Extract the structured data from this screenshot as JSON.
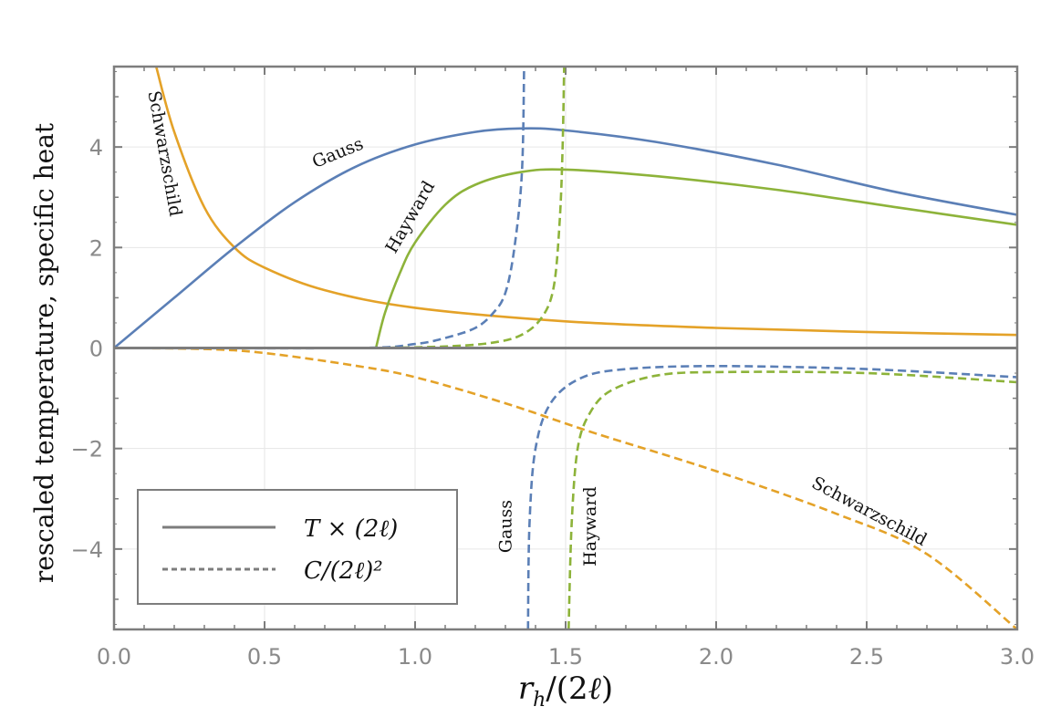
{
  "chart_data": {
    "type": "line",
    "xlabel": "r_h/(2ℓ)",
    "ylabel": "rescaled temperature, specific heat",
    "xlim": [
      0,
      3
    ],
    "ylim": [
      -5.6,
      5.6
    ],
    "xticks": [
      "0.0",
      "0.5",
      "1.0",
      "1.5",
      "2.0",
      "2.5",
      "3.0"
    ],
    "yticks": [
      "4",
      "2",
      "0",
      "−2",
      "−4"
    ],
    "grid": true,
    "legend": {
      "position": "bottom-left",
      "entries": [
        {
          "label": "T × (2ℓ)",
          "style": "solid"
        },
        {
          "label": "C/(2ℓ)²",
          "style": "dashed"
        }
      ]
    },
    "series": [
      {
        "name": "Schwarzschild T",
        "model": "Schwarzschild",
        "kind": "T",
        "color": "#e4a228",
        "style": "solid",
        "points": [
          [
            0.14,
            5.6
          ],
          [
            0.2,
            4.3
          ],
          [
            0.3,
            2.8
          ],
          [
            0.4,
            2.0
          ],
          [
            0.5,
            1.6
          ],
          [
            0.7,
            1.15
          ],
          [
            1.0,
            0.8
          ],
          [
            1.5,
            0.53
          ],
          [
            2.0,
            0.4
          ],
          [
            2.5,
            0.32
          ],
          [
            3.0,
            0.26
          ]
        ]
      },
      {
        "name": "Gauss T",
        "model": "Gauss",
        "kind": "T",
        "color": "#5b7fb6",
        "style": "solid",
        "points": [
          [
            0.0,
            0.0
          ],
          [
            0.2,
            1.0
          ],
          [
            0.4,
            2.0
          ],
          [
            0.6,
            2.9
          ],
          [
            0.8,
            3.6
          ],
          [
            1.0,
            4.05
          ],
          [
            1.2,
            4.3
          ],
          [
            1.35,
            4.37
          ],
          [
            1.5,
            4.33
          ],
          [
            1.8,
            4.1
          ],
          [
            2.2,
            3.65
          ],
          [
            2.6,
            3.1
          ],
          [
            3.0,
            2.65
          ]
        ]
      },
      {
        "name": "Hayward T",
        "model": "Hayward",
        "kind": "T",
        "color": "#8db33a",
        "style": "solid",
        "points": [
          [
            0.87,
            0.0
          ],
          [
            0.9,
            0.7
          ],
          [
            0.95,
            1.5
          ],
          [
            1.0,
            2.1
          ],
          [
            1.1,
            2.85
          ],
          [
            1.2,
            3.25
          ],
          [
            1.35,
            3.5
          ],
          [
            1.5,
            3.55
          ],
          [
            1.8,
            3.42
          ],
          [
            2.2,
            3.15
          ],
          [
            2.6,
            2.8
          ],
          [
            3.0,
            2.45
          ]
        ]
      },
      {
        "name": "Schwarzschild C",
        "model": "Schwarzschild",
        "kind": "C",
        "color": "#e4a228",
        "style": "dashed",
        "points": [
          [
            0.0,
            0.0
          ],
          [
            0.3,
            -0.02
          ],
          [
            0.5,
            -0.1
          ],
          [
            0.8,
            -0.35
          ],
          [
            1.0,
            -0.58
          ],
          [
            1.3,
            -1.1
          ],
          [
            1.6,
            -1.7
          ],
          [
            2.0,
            -2.45
          ],
          [
            2.4,
            -3.3
          ],
          [
            2.7,
            -4.1
          ],
          [
            3.0,
            -5.6
          ]
        ]
      },
      {
        "name": "Gauss C (positive branch)",
        "model": "Gauss",
        "kind": "C",
        "color": "#5b7fb6",
        "style": "dashed",
        "points": [
          [
            0.0,
            0.0
          ],
          [
            0.8,
            0.0
          ],
          [
            1.0,
            0.08
          ],
          [
            1.1,
            0.2
          ],
          [
            1.2,
            0.4
          ],
          [
            1.26,
            0.7
          ],
          [
            1.3,
            1.1
          ],
          [
            1.33,
            2.0
          ],
          [
            1.355,
            3.5
          ],
          [
            1.362,
            5.6
          ]
        ]
      },
      {
        "name": "Gauss C (negative branch)",
        "model": "Gauss",
        "kind": "C",
        "color": "#5b7fb6",
        "style": "dashed",
        "points": [
          [
            1.375,
            -5.6
          ],
          [
            1.38,
            -3.5
          ],
          [
            1.4,
            -2.0
          ],
          [
            1.45,
            -1.1
          ],
          [
            1.55,
            -0.6
          ],
          [
            1.7,
            -0.42
          ],
          [
            2.0,
            -0.36
          ],
          [
            2.5,
            -0.42
          ],
          [
            3.0,
            -0.58
          ]
        ]
      },
      {
        "name": "Hayward C (positive branch)",
        "model": "Hayward",
        "kind": "C",
        "color": "#8db33a",
        "style": "dashed",
        "points": [
          [
            0.87,
            0.0
          ],
          [
            1.1,
            0.03
          ],
          [
            1.25,
            0.1
          ],
          [
            1.35,
            0.25
          ],
          [
            1.42,
            0.6
          ],
          [
            1.46,
            1.2
          ],
          [
            1.48,
            2.5
          ],
          [
            1.49,
            4.0
          ],
          [
            1.495,
            5.6
          ]
        ]
      },
      {
        "name": "Hayward C (negative branch)",
        "model": "Hayward",
        "kind": "C",
        "color": "#8db33a",
        "style": "dashed",
        "points": [
          [
            1.51,
            -5.6
          ],
          [
            1.52,
            -3.5
          ],
          [
            1.54,
            -2.0
          ],
          [
            1.58,
            -1.3
          ],
          [
            1.65,
            -0.85
          ],
          [
            1.8,
            -0.55
          ],
          [
            2.0,
            -0.48
          ],
          [
            2.5,
            -0.5
          ],
          [
            3.0,
            -0.68
          ]
        ]
      }
    ],
    "annotations": [
      {
        "text": "Schwarzschild",
        "x": 0.15,
        "y": 3.85,
        "rotate": 80
      },
      {
        "text": "Gauss",
        "x": 0.75,
        "y": 3.78,
        "rotate": -22
      },
      {
        "text": "Hayward",
        "x": 1.0,
        "y": 2.55,
        "rotate": -60
      },
      {
        "text": "Gauss",
        "x": 1.32,
        "y": -3.55,
        "rotate": -90
      },
      {
        "text": "Hayward",
        "x": 1.6,
        "y": -3.55,
        "rotate": -90
      },
      {
        "text": "Schwarzschild",
        "x": 2.5,
        "y": -3.35,
        "rotate": 28
      }
    ]
  }
}
